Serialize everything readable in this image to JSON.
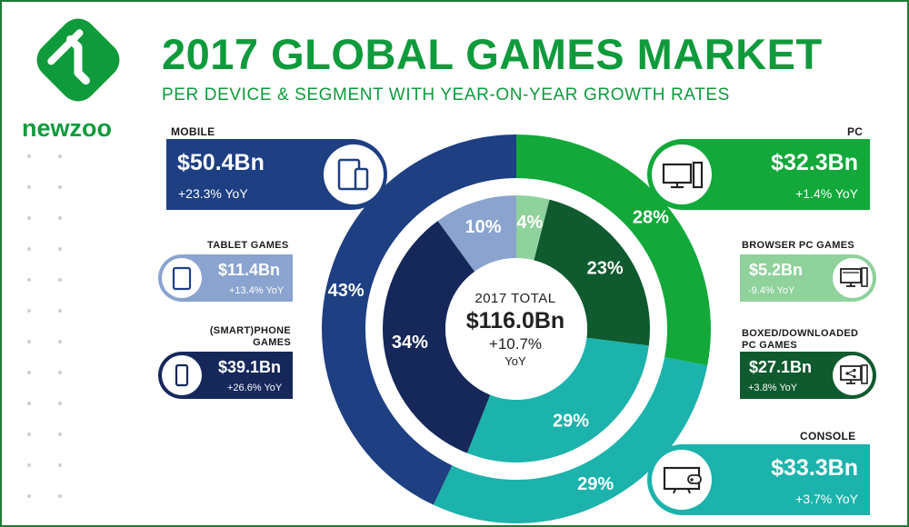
{
  "brand": {
    "name": "newzoo"
  },
  "title": "2017 GLOBAL GAMES MARKET",
  "subtitle": "PER DEVICE & SEGMENT WITH YEAR-ON-YEAR GROWTH RATES",
  "colors": {
    "brand_green": "#0f9a3c",
    "mobile": "#1e3f82",
    "tablet": "#8aa3cf",
    "smartphone": "#16285a",
    "pc": "#12a83a",
    "browser_pc": "#8fd29c",
    "boxed_pc": "#0f5a2e",
    "console": "#1bb3ab"
  },
  "center": {
    "label": "2017 TOTAL",
    "value": "$116.0Bn",
    "growth": "+10.7%",
    "yoy": "YoY"
  },
  "segments": {
    "mobile": {
      "label": "MOBILE",
      "value": "$50.4Bn",
      "growth": "+23.3% YoY",
      "icon": "tablet-phone-icon"
    },
    "tablet": {
      "label": "TABLET GAMES",
      "value": "$11.4Bn",
      "growth": "+13.4% YoY",
      "icon": "tablet-icon"
    },
    "smartphone": {
      "label_line1": "(SMART)PHONE",
      "label_line2": "GAMES",
      "value": "$39.1Bn",
      "growth": "+26.6% YoY",
      "icon": "smartphone-icon"
    },
    "pc": {
      "label": "PC",
      "value": "$32.3Bn",
      "growth": "+1.4% YoY",
      "icon": "desktop-pc-icon"
    },
    "browser": {
      "label": "BROWSER PC GAMES",
      "value": "$5.2Bn",
      "growth": "-9.4% YoY",
      "icon": "browser-monitor-icon"
    },
    "boxed": {
      "label_line1": "BOXED/DOWNLOADED",
      "label_line2": "PC GAMES",
      "value": "$27.1Bn",
      "growth": "+3.8% YoY",
      "icon": "download-monitor-icon"
    },
    "console": {
      "label": "CONSOLE",
      "value": "$33.3Bn",
      "growth": "+3.7% YoY",
      "icon": "tv-gamepad-icon"
    }
  },
  "chart_data": [
    {
      "type": "pie",
      "subtype": "donut-outer",
      "categories": [
        "PC",
        "Console",
        "Mobile"
      ],
      "values": [
        28,
        29,
        43
      ],
      "labels": [
        "28%",
        "29%",
        "43%"
      ],
      "colors": [
        "#12a83a",
        "#1bb3ab",
        "#1e3f82"
      ]
    },
    {
      "type": "pie",
      "subtype": "donut-inner",
      "categories": [
        "Browser PC Games",
        "Boxed/Downloaded PC Games",
        "Console",
        "(Smart)phone Games",
        "Tablet Games"
      ],
      "values": [
        4,
        23,
        29,
        34,
        10
      ],
      "labels": [
        "4%",
        "23%",
        "29%",
        "34%",
        "10%"
      ],
      "colors": [
        "#8fd29c",
        "#0f5a2e",
        "#1bb3ab",
        "#16285a",
        "#8aa3cf"
      ]
    }
  ]
}
